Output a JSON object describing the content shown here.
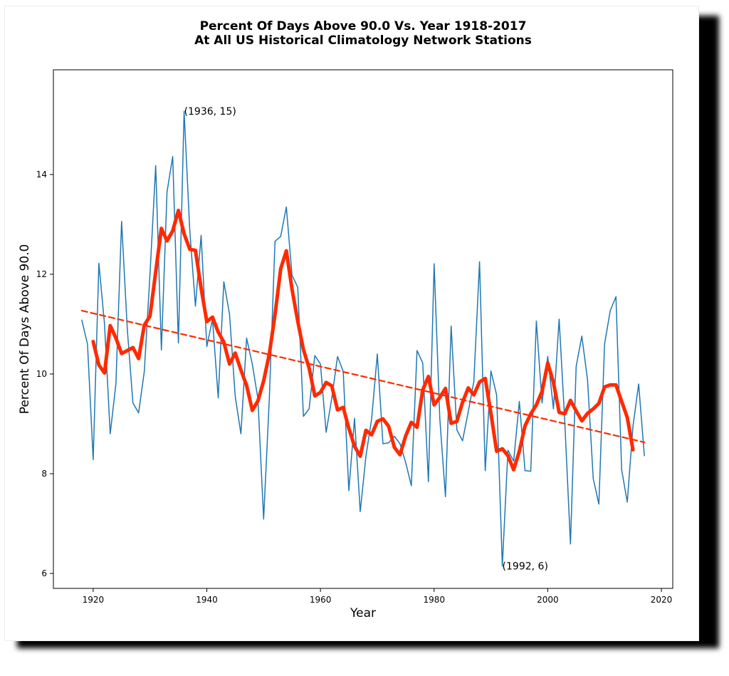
{
  "chart_data": {
    "type": "line",
    "title_line1": "Percent Of Days Above 90.0 Vs. Year 1918-2017",
    "title_line2": "At All US Historical Climatology Network Stations",
    "xlabel": "Year",
    "ylabel": "Percent Of Days Above 90.0",
    "xlim": [
      1913,
      2022
    ],
    "ylim": [
      5.7,
      16.1
    ],
    "xticks": [
      1920,
      1940,
      1960,
      1980,
      2000,
      2020
    ],
    "yticks": [
      6,
      8,
      10,
      12,
      14
    ],
    "grid": false,
    "series": [
      {
        "style": "thin-line",
        "color": "#1f77b4",
        "x": [
          1918,
          1919,
          1920,
          1921,
          1922,
          1923,
          1924,
          1925,
          1926,
          1927,
          1928,
          1929,
          1930,
          1931,
          1932,
          1933,
          1934,
          1935,
          1936,
          1937,
          1938,
          1939,
          1940,
          1941,
          1942,
          1943,
          1944,
          1945,
          1946,
          1947,
          1948,
          1949,
          1950,
          1951,
          1952,
          1953,
          1954,
          1955,
          1956,
          1957,
          1958,
          1959,
          1960,
          1961,
          1962,
          1963,
          1964,
          1965,
          1966,
          1967,
          1968,
          1969,
          1970,
          1971,
          1972,
          1973,
          1974,
          1975,
          1976,
          1977,
          1978,
          1979,
          1980,
          1981,
          1982,
          1983,
          1984,
          1985,
          1986,
          1987,
          1988,
          1989,
          1990,
          1991,
          1992,
          1993,
          1994,
          1995,
          1996,
          1997,
          1998,
          1999,
          2000,
          2001,
          2002,
          2003,
          2004,
          2005,
          2006,
          2007,
          2008,
          2009,
          2010,
          2011,
          2012,
          2013,
          2014,
          2015,
          2016,
          2017
        ],
        "y": [
          11.08,
          10.6,
          8.28,
          12.22,
          11.0,
          8.8,
          9.8,
          13.06,
          10.9,
          9.42,
          9.22,
          10.05,
          12.0,
          14.18,
          10.48,
          13.65,
          14.36,
          10.62,
          15.27,
          12.87,
          11.36,
          12.78,
          10.55,
          11.1,
          9.52,
          11.85,
          11.2,
          9.55,
          8.8,
          10.72,
          10.2,
          9.5,
          7.09,
          9.5,
          12.66,
          12.76,
          13.35,
          11.98,
          11.74,
          9.15,
          9.3,
          10.37,
          10.2,
          8.83,
          9.52,
          10.35,
          10.05,
          7.66,
          9.11,
          7.24,
          8.35,
          9.1,
          10.4,
          8.6,
          8.62,
          8.75,
          8.6,
          8.22,
          7.76,
          10.47,
          10.22,
          7.84,
          12.21,
          9.1,
          7.54,
          10.96,
          8.88,
          8.66,
          9.24,
          9.85,
          12.25,
          8.06,
          10.06,
          9.58,
          6.15,
          8.47,
          8.25,
          9.45,
          8.06,
          8.05,
          11.06,
          9.42,
          10.35,
          9.3,
          11.1,
          9.05,
          6.59,
          10.15,
          10.76,
          9.88,
          7.9,
          7.39,
          10.6,
          11.27,
          11.55,
          8.08,
          7.43,
          8.95,
          9.8,
          8.36
        ]
      },
      {
        "style": "thick-moving-average",
        "color": "#ff2a00",
        "x": [
          1920,
          1921,
          1922,
          1923,
          1924,
          1925,
          1926,
          1927,
          1928,
          1929,
          1930,
          1931,
          1932,
          1933,
          1934,
          1935,
          1936,
          1937,
          1938,
          1939,
          1940,
          1941,
          1942,
          1943,
          1944,
          1945,
          1946,
          1947,
          1948,
          1949,
          1950,
          1951,
          1952,
          1953,
          1954,
          1955,
          1956,
          1957,
          1958,
          1959,
          1960,
          1961,
          1962,
          1963,
          1964,
          1965,
          1966,
          1967,
          1968,
          1969,
          1970,
          1971,
          1972,
          1973,
          1974,
          1975,
          1976,
          1977,
          1978,
          1979,
          1980,
          1981,
          1982,
          1983,
          1984,
          1985,
          1986,
          1987,
          1988,
          1989,
          1990,
          1991,
          1992,
          1993,
          1994,
          1995,
          1996,
          1997,
          1998,
          1999,
          2000,
          2001,
          2002,
          2003,
          2004,
          2005,
          2006,
          2007,
          2008,
          2009,
          2010,
          2011,
          2012,
          2013,
          2014,
          2015
        ],
        "y": [
          10.65,
          10.18,
          10.02,
          10.97,
          10.72,
          10.41,
          10.47,
          10.53,
          10.31,
          10.98,
          11.16,
          12.05,
          12.92,
          12.67,
          12.87,
          13.28,
          12.81,
          12.5,
          12.48,
          11.72,
          11.05,
          11.14,
          10.84,
          10.64,
          10.2,
          10.42,
          10.08,
          9.77,
          9.27,
          9.46,
          9.86,
          10.4,
          11.19,
          12.11,
          12.47,
          11.7,
          11.06,
          10.49,
          10.12,
          9.56,
          9.63,
          9.83,
          9.76,
          9.28,
          9.33,
          8.91,
          8.55,
          8.35,
          8.87,
          8.78,
          9.05,
          9.1,
          8.95,
          8.53,
          8.38,
          8.76,
          9.03,
          8.93,
          9.68,
          9.95,
          9.38,
          9.53,
          9.71,
          9.01,
          9.05,
          9.43,
          9.72,
          9.58,
          9.84,
          9.91,
          9.21,
          8.45,
          8.5,
          8.36,
          8.08,
          8.45,
          8.96,
          9.2,
          9.38,
          9.65,
          10.22,
          9.83,
          9.23,
          9.2,
          9.47,
          9.26,
          9.06,
          9.21,
          9.3,
          9.41,
          9.74,
          9.78,
          9.78,
          9.45,
          9.13,
          8.48
        ]
      },
      {
        "style": "dashed-trend",
        "color": "#ff2a00",
        "x": [
          1918,
          2017
        ],
        "y": [
          11.27,
          8.63
        ]
      }
    ],
    "annotations": [
      {
        "text": "(1936, 15)",
        "x": 1936,
        "y": 15.27
      },
      {
        "text": "(1992, 6)",
        "x": 1992,
        "y": 6.15
      }
    ]
  }
}
